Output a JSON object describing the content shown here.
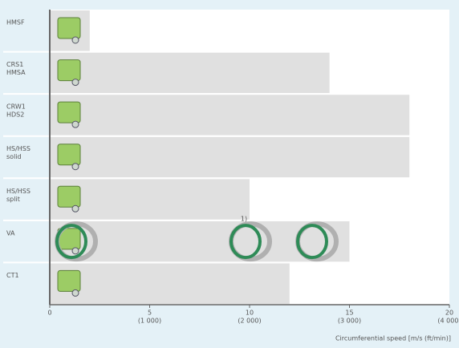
{
  "chart_data": {
    "type": "bar",
    "orientation": "horizontal",
    "categories": [
      [
        "HMSF"
      ],
      [
        "CRS1",
        "HMSA"
      ],
      [
        "CRW1",
        "HDS2"
      ],
      [
        "HS/HSS",
        "solid"
      ],
      [
        "HS/HSS",
        "split"
      ],
      [
        "VA"
      ],
      [
        "CT1"
      ]
    ],
    "values": [
      2,
      14,
      18,
      18,
      10,
      15,
      12
    ],
    "color": "#e0e0e0",
    "xlim": [
      0,
      20
    ],
    "xticks": [
      0,
      5,
      10,
      15,
      20
    ],
    "x2ticks": [
      {
        "value": 5,
        "label": "(1 000)"
      },
      {
        "value": 10,
        "label": "(2 000)"
      },
      {
        "value": 15,
        "label": "(3 000)"
      },
      {
        "value": 20,
        "label": "(4 000)"
      }
    ],
    "x_label": "Circumferential speed [m/s (ft/min)]",
    "annotation": "1)"
  }
}
